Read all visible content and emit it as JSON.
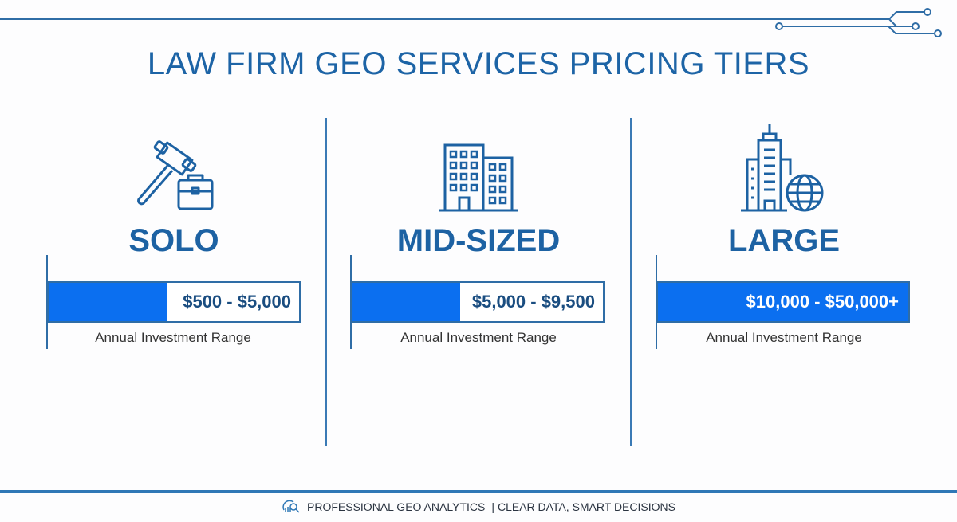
{
  "title": "LAW FIRM GEO SERVICES PRICING TIERS",
  "accent_color": "#0b6ff0",
  "primary_color": "#1d64a6",
  "tiers": [
    {
      "name": "SOLO",
      "icon": "gavel-briefcase-icon",
      "range": "$500 - $5,000",
      "bar_fill_fraction": 0.47,
      "caption": "Annual Investment Range"
    },
    {
      "name": "MID-SIZED",
      "icon": "office-building-icon",
      "range": "$5,000 - $9,500",
      "bar_fill_fraction": 0.43,
      "caption": "Annual Investment Range"
    },
    {
      "name": "LARGE",
      "icon": "skyscraper-globe-icon",
      "range": "$10,000 - $50,000+",
      "bar_fill_fraction": 1.0,
      "caption": "Annual Investment Range"
    }
  ],
  "footer": {
    "icon": "analytics-magnifier-icon",
    "left": "PROFESSIONAL GEO ANALYTICS",
    "separator": "|",
    "right": "CLEAR DATA, SMART DECISIONS"
  }
}
